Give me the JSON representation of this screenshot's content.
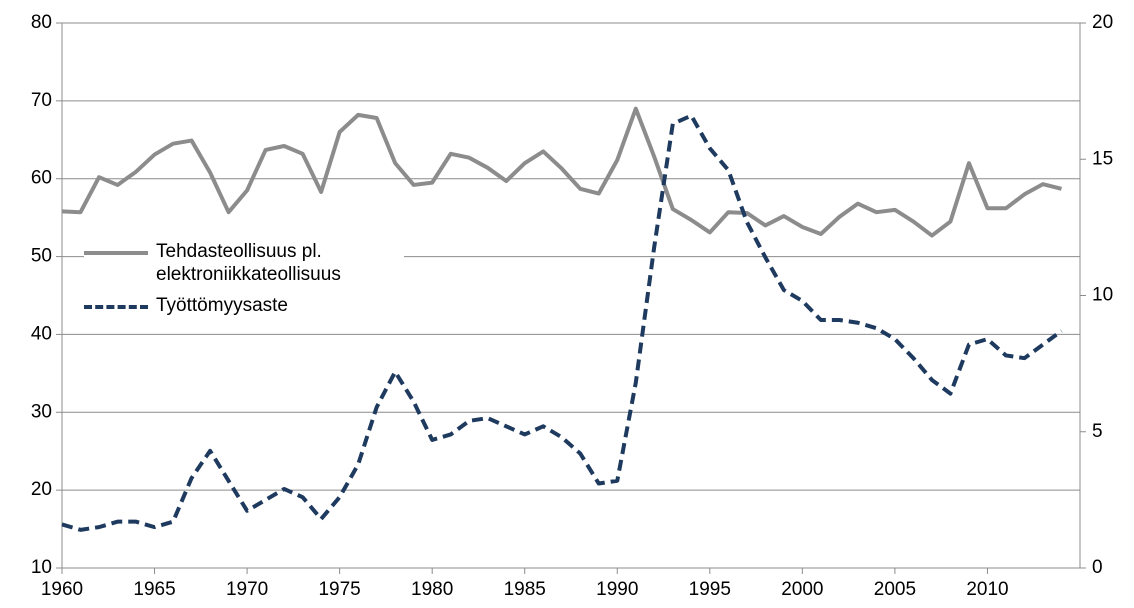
{
  "chart_data": {
    "type": "line",
    "x": [
      1960,
      1961,
      1962,
      1963,
      1964,
      1965,
      1966,
      1967,
      1968,
      1969,
      1970,
      1971,
      1972,
      1973,
      1974,
      1975,
      1976,
      1977,
      1978,
      1979,
      1980,
      1981,
      1982,
      1983,
      1984,
      1985,
      1986,
      1987,
      1988,
      1989,
      1990,
      1991,
      1992,
      1993,
      1994,
      1995,
      1996,
      1997,
      1998,
      1999,
      2000,
      2001,
      2002,
      2003,
      2004,
      2005,
      2006,
      2007,
      2008,
      2009,
      2010,
      2011,
      2012,
      2013,
      2014
    ],
    "series": [
      {
        "name": "Tehdasteollisuus pl. elektroniikkateollisuus",
        "color": "#8c8c8c",
        "dash": false,
        "values": [
          55.8,
          55.7,
          60.2,
          59.2,
          60.9,
          63.1,
          64.5,
          64.9,
          60.8,
          55.7,
          58.5,
          63.7,
          64.2,
          63.2,
          58.3,
          66.0,
          68.2,
          67.8,
          62.0,
          59.2,
          59.5,
          63.2,
          62.7,
          61.4,
          59.7,
          62.0,
          63.5,
          61.3,
          58.7,
          58.1,
          62.4,
          69.0,
          62.8,
          56.1,
          54.7,
          53.1,
          55.7,
          55.6,
          54.0,
          55.2,
          53.8,
          52.9,
          55.1,
          56.8,
          55.7,
          56.0,
          54.5,
          52.7,
          54.5,
          62.0,
          56.2,
          56.2,
          58.0,
          59.3,
          58.7
        ]
      },
      {
        "name": "Työttömyysaste",
        "color": "#1f3a5f",
        "dash": true,
        "axis": "y2",
        "values": [
          1.6,
          1.4,
          1.5,
          1.7,
          1.7,
          1.5,
          1.7,
          3.3,
          4.3,
          3.2,
          2.1,
          2.5,
          2.9,
          2.6,
          1.8,
          2.6,
          3.8,
          5.9,
          7.2,
          6.1,
          4.7,
          4.9,
          5.4,
          5.5,
          5.2,
          4.9,
          5.2,
          4.8,
          4.2,
          3.1,
          3.2,
          6.8,
          11.8,
          16.3,
          16.6,
          15.4,
          14.6,
          12.7,
          11.4,
          10.2,
          9.8,
          9.1,
          9.1,
          9.0,
          8.8,
          8.4,
          7.7,
          6.9,
          6.4,
          8.2,
          8.4,
          7.8,
          7.7,
          8.2,
          8.7
        ]
      }
    ],
    "xlim": [
      1960,
      2015
    ],
    "xticks": [
      1960,
      1965,
      1970,
      1975,
      1980,
      1985,
      1990,
      1995,
      2000,
      2005,
      2010
    ],
    "ylim": [
      10,
      80
    ],
    "yticks": [
      10,
      20,
      30,
      40,
      50,
      60,
      70,
      80
    ],
    "y2lim": [
      0,
      20
    ],
    "y2ticks": [
      0,
      5,
      10,
      15,
      20
    ],
    "grid": true
  }
}
